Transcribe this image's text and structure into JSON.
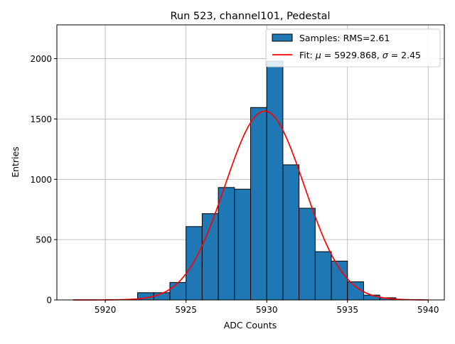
{
  "chart_data": {
    "type": "bar",
    "title": "Run 523, channel101, Pedestal",
    "xlabel": "ADC Counts",
    "ylabel": "Entries",
    "xlim": [
      5917,
      5941
    ],
    "ylim": [
      0,
      2280
    ],
    "xticks": [
      5920,
      5925,
      5930,
      5935,
      5940
    ],
    "yticks": [
      0,
      500,
      1000,
      1500,
      2000
    ],
    "grid": true,
    "bin_width": 1,
    "bins": [
      {
        "left": 5918,
        "count": 0
      },
      {
        "left": 5919,
        "count": 0
      },
      {
        "left": 5920,
        "count": 0
      },
      {
        "left": 5921,
        "count": 2
      },
      {
        "left": 5922,
        "count": 60
      },
      {
        "left": 5923,
        "count": 60
      },
      {
        "left": 5924,
        "count": 145
      },
      {
        "left": 5925,
        "count": 608
      },
      {
        "left": 5926,
        "count": 715
      },
      {
        "left": 5927,
        "count": 932
      },
      {
        "left": 5928,
        "count": 918
      },
      {
        "left": 5929,
        "count": 1595
      },
      {
        "left": 5930,
        "count": 1980
      },
      {
        "left": 5931,
        "count": 1120
      },
      {
        "left": 5932,
        "count": 760
      },
      {
        "left": 5933,
        "count": 400
      },
      {
        "left": 5934,
        "count": 322
      },
      {
        "left": 5935,
        "count": 150
      },
      {
        "left": 5936,
        "count": 40
      },
      {
        "left": 5937,
        "count": 18
      }
    ],
    "fit": {
      "mu": 5929.868,
      "sigma": 2.45,
      "amplitude": 1565,
      "x_range": [
        5918,
        5940
      ]
    },
    "legend": {
      "location": "upper right",
      "entries": [
        {
          "label": "Samples: RMS=2.61",
          "kind": "patch",
          "color": "#1f77b4"
        },
        {
          "label_prefix": "Fit: ",
          "mu_symbol": "μ",
          "mu_text": " = 5929.868, ",
          "sigma_symbol": "σ",
          "sigma_text": " = 2.45",
          "kind": "line",
          "color": "#ff0000"
        }
      ]
    },
    "colors": {
      "bar": "#1f77b4",
      "edge": "#000000",
      "fit": "#ff0000",
      "grid": "#b0b0b0"
    }
  }
}
